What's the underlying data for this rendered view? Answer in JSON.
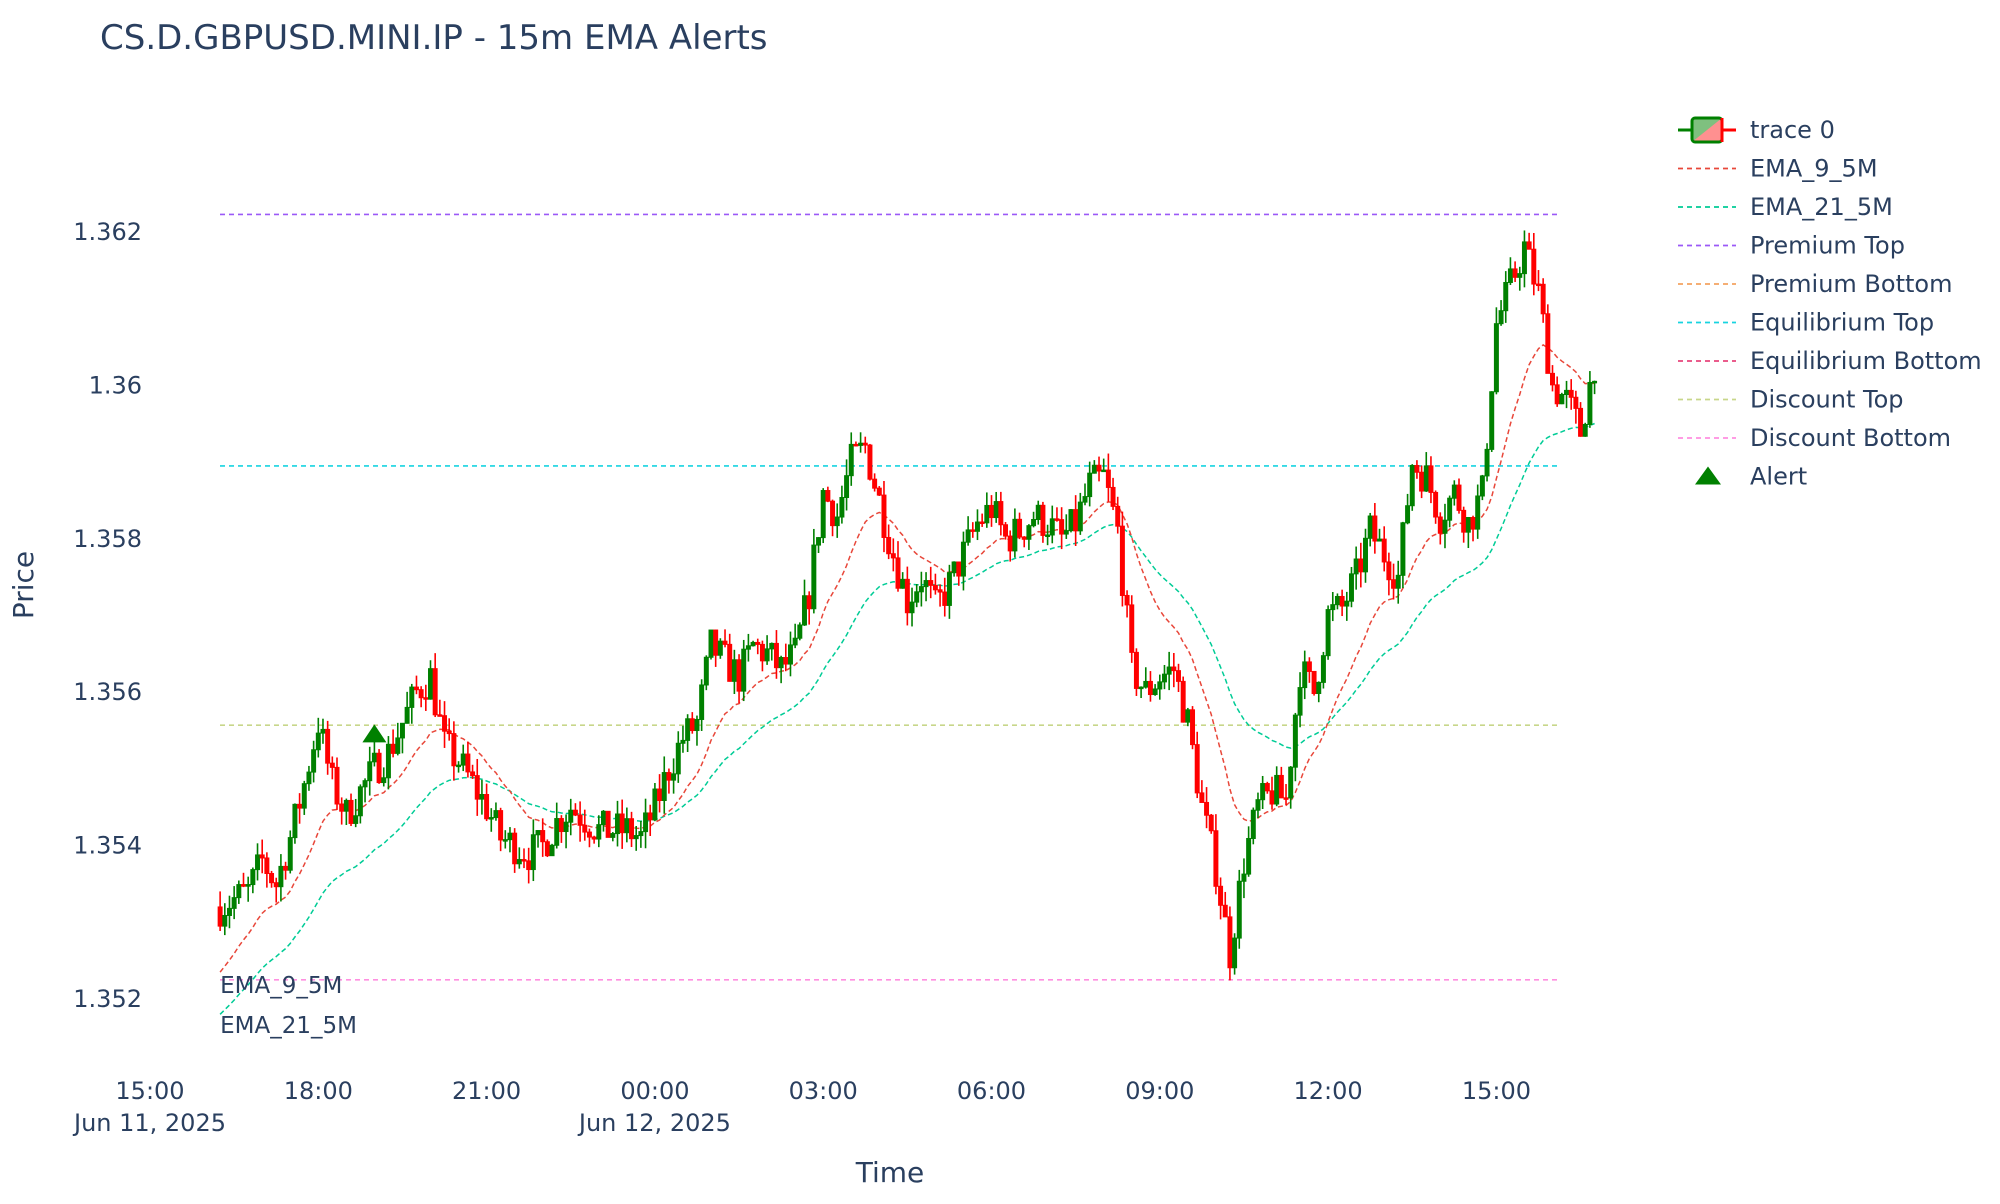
{
  "chart_data": {
    "type": "candlestick",
    "title": "CS.D.GBPUSD.MINI.IP - 15m EMA Alerts",
    "xlabel": "Time",
    "ylabel": "Price",
    "x_range": [
      "2025-06-11T15:00",
      "2025-06-12T16:45"
    ],
    "ylim": [
      1.3514,
      1.3632
    ],
    "y_ticks": [
      1.352,
      1.354,
      1.356,
      1.358,
      1.36,
      1.362
    ],
    "y_tick_labels": [
      "1.352",
      "1.354",
      "1.356",
      "1.358",
      "1.36",
      "1.362"
    ],
    "x_ticks": [
      {
        "t": "2025-06-11T15:00",
        "label": "15:00",
        "date": "Jun 11, 2025"
      },
      {
        "t": "2025-06-11T18:00",
        "label": "18:00",
        "date": ""
      },
      {
        "t": "2025-06-11T21:00",
        "label": "21:00",
        "date": ""
      },
      {
        "t": "2025-06-12T00:00",
        "label": "00:00",
        "date": "Jun 12, 2025"
      },
      {
        "t": "2025-06-12T03:00",
        "label": "03:00",
        "date": ""
      },
      {
        "t": "2025-06-12T06:00",
        "label": "06:00",
        "date": ""
      },
      {
        "t": "2025-06-12T09:00",
        "label": "09:00",
        "date": ""
      },
      {
        "t": "2025-06-12T12:00",
        "label": "12:00",
        "date": ""
      },
      {
        "t": "2025-06-12T15:00",
        "label": "15:00",
        "date": ""
      }
    ],
    "grid": false,
    "legend_position": "top-right",
    "colors": {
      "increasing": "#008000",
      "decreasing": "#ff0000",
      "ema9": "#e8473a",
      "ema21": "#00cc96",
      "premium_top": "#9b59f7",
      "premium_bottom": "#f4a261",
      "equilibrium_top": "#17d4e0",
      "equilibrium_bottom": "#e8457c",
      "discount_top": "#c8d68a",
      "discount_bottom": "#ff8fe0",
      "alert": "#008000"
    },
    "levels": [
      {
        "name": "Premium Top",
        "value": 1.36223,
        "color_key": "premium_top"
      },
      {
        "name": "Equilibrium Top",
        "value": 1.35895,
        "color_key": "equilibrium_top"
      },
      {
        "name": "Discount Top",
        "value": 1.35557,
        "color_key": "discount_top"
      },
      {
        "name": "Discount Bottom",
        "value": 1.35225,
        "color_key": "discount_bottom"
      }
    ],
    "legend": [
      {
        "name": "trace 0",
        "kind": "candle"
      },
      {
        "name": "EMA_9_5M",
        "kind": "line",
        "color_key": "ema9"
      },
      {
        "name": "EMA_21_5M",
        "kind": "line",
        "color_key": "ema21"
      },
      {
        "name": "Premium Top",
        "kind": "line",
        "color_key": "premium_top"
      },
      {
        "name": "Premium Bottom",
        "kind": "line",
        "color_key": "premium_bottom"
      },
      {
        "name": "Equilibrium Top",
        "kind": "line",
        "color_key": "equilibrium_top"
      },
      {
        "name": "Equilibrium Bottom",
        "kind": "line",
        "color_key": "equilibrium_bottom"
      },
      {
        "name": "Discount Top",
        "kind": "line",
        "color_key": "discount_top"
      },
      {
        "name": "Discount Bottom",
        "kind": "line",
        "color_key": "discount_bottom"
      },
      {
        "name": "Alert",
        "kind": "marker",
        "color_key": "alert"
      }
    ],
    "annotations": [
      {
        "text": "EMA_9_5M",
        "t": "2025-06-11T16:15",
        "y": 1.35218
      },
      {
        "text": "EMA_21_5M",
        "t": "2025-06-11T16:15",
        "y": 1.35166
      }
    ],
    "alerts": [
      {
        "t": "2025-06-11T19:00",
        "y": 1.35545
      }
    ],
    "price_path": [
      [
        "2025-06-11T16:15",
        1.3532
      ],
      [
        "2025-06-11T16:45",
        1.3534
      ],
      [
        "2025-06-11T17:00",
        1.3538
      ],
      [
        "2025-06-11T17:15",
        1.3535
      ],
      [
        "2025-06-11T17:30",
        1.3541
      ],
      [
        "2025-06-11T17:45",
        1.3548
      ],
      [
        "2025-06-11T18:00",
        1.3556
      ],
      [
        "2025-06-11T18:15",
        1.3548
      ],
      [
        "2025-06-11T18:30",
        1.3544
      ],
      [
        "2025-06-11T18:45",
        1.3547
      ],
      [
        "2025-06-11T19:00",
        1.355
      ],
      [
        "2025-06-11T19:15",
        1.3552
      ],
      [
        "2025-06-11T19:30",
        1.3556
      ],
      [
        "2025-06-11T19:45",
        1.356
      ],
      [
        "2025-06-11T20:00",
        1.3562
      ],
      [
        "2025-06-11T20:15",
        1.3553
      ],
      [
        "2025-06-11T20:30",
        1.3551
      ],
      [
        "2025-06-11T20:45",
        1.3548
      ],
      [
        "2025-06-11T21:00",
        1.3545
      ],
      [
        "2025-06-11T21:15",
        1.3541
      ],
      [
        "2025-06-11T21:30",
        1.354
      ],
      [
        "2025-06-11T21:45",
        1.3539
      ],
      [
        "2025-06-11T22:00",
        1.354
      ],
      [
        "2025-06-11T22:15",
        1.3543
      ],
      [
        "2025-06-11T22:30",
        1.3545
      ],
      [
        "2025-06-11T23:00",
        1.3542
      ],
      [
        "2025-06-11T23:30",
        1.3542
      ],
      [
        "2025-06-11T23:45",
        1.3541
      ],
      [
        "2025-06-12T00:00",
        1.3545
      ],
      [
        "2025-06-12T00:15",
        1.355
      ],
      [
        "2025-06-12T00:30",
        1.3554
      ],
      [
        "2025-06-12T00:45",
        1.3556
      ],
      [
        "2025-06-12T01:00",
        1.3566
      ],
      [
        "2025-06-12T01:15",
        1.3564
      ],
      [
        "2025-06-12T01:30",
        1.3562
      ],
      [
        "2025-06-12T01:45",
        1.3566
      ],
      [
        "2025-06-12T02:00",
        1.3565
      ],
      [
        "2025-06-12T02:15",
        1.3563
      ],
      [
        "2025-06-12T02:30",
        1.3565
      ],
      [
        "2025-06-12T02:45",
        1.3573
      ],
      [
        "2025-06-12T03:00",
        1.3586
      ],
      [
        "2025-06-12T03:15",
        1.3583
      ],
      [
        "2025-06-12T03:30",
        1.359
      ],
      [
        "2025-06-12T03:45",
        1.3592
      ],
      [
        "2025-06-12T04:00",
        1.3585
      ],
      [
        "2025-06-12T04:15",
        1.3578
      ],
      [
        "2025-06-12T04:30",
        1.3572
      ],
      [
        "2025-06-12T04:45",
        1.3575
      ],
      [
        "2025-06-12T05:00",
        1.3571
      ],
      [
        "2025-06-12T05:15",
        1.3574
      ],
      [
        "2025-06-12T05:30",
        1.3578
      ],
      [
        "2025-06-12T05:45",
        1.3582
      ],
      [
        "2025-06-12T06:00",
        1.3584
      ],
      [
        "2025-06-12T06:15",
        1.358
      ],
      [
        "2025-06-12T06:30",
        1.3581
      ],
      [
        "2025-06-12T06:45",
        1.3583
      ],
      [
        "2025-06-12T07:00",
        1.3582
      ],
      [
        "2025-06-12T07:15",
        1.358
      ],
      [
        "2025-06-12T07:30",
        1.3582
      ],
      [
        "2025-06-12T07:45",
        1.3587
      ],
      [
        "2025-06-12T08:00",
        1.3588
      ],
      [
        "2025-06-12T08:15",
        1.3581
      ],
      [
        "2025-06-12T08:30",
        1.3563
      ],
      [
        "2025-06-12T08:45",
        1.356
      ],
      [
        "2025-06-12T09:00",
        1.3562
      ],
      [
        "2025-06-12T09:15",
        1.3563
      ],
      [
        "2025-06-12T09:30",
        1.3556
      ],
      [
        "2025-06-12T09:45",
        1.3545
      ],
      [
        "2025-06-12T10:00",
        1.3537
      ],
      [
        "2025-06-12T10:15",
        1.3526
      ],
      [
        "2025-06-12T10:30",
        1.3538
      ],
      [
        "2025-06-12T10:45",
        1.3545
      ],
      [
        "2025-06-12T11:00",
        1.3547
      ],
      [
        "2025-06-12T11:15",
        1.3546
      ],
      [
        "2025-06-12T11:30",
        1.3563
      ],
      [
        "2025-06-12T11:45",
        1.356
      ],
      [
        "2025-06-12T12:00",
        1.357
      ],
      [
        "2025-06-12T12:15",
        1.3571
      ],
      [
        "2025-06-12T12:30",
        1.3575
      ],
      [
        "2025-06-12T12:45",
        1.3581
      ],
      [
        "2025-06-12T13:00",
        1.3578
      ],
      [
        "2025-06-12T13:15",
        1.3575
      ],
      [
        "2025-06-12T13:30",
        1.359
      ],
      [
        "2025-06-12T13:45",
        1.3588
      ],
      [
        "2025-06-12T14:00",
        1.3583
      ],
      [
        "2025-06-12T14:15",
        1.3586
      ],
      [
        "2025-06-12T14:30",
        1.3582
      ],
      [
        "2025-06-12T14:45",
        1.3586
      ],
      [
        "2025-06-12T15:00",
        1.3608
      ],
      [
        "2025-06-12T15:15",
        1.3613
      ],
      [
        "2025-06-12T15:30",
        1.3618
      ],
      [
        "2025-06-12T15:45",
        1.3612
      ],
      [
        "2025-06-12T16:00",
        1.36
      ],
      [
        "2025-06-12T16:15",
        1.3598
      ],
      [
        "2025-06-12T16:30",
        1.3594
      ],
      [
        "2025-06-12T16:45",
        1.3603
      ]
    ]
  }
}
